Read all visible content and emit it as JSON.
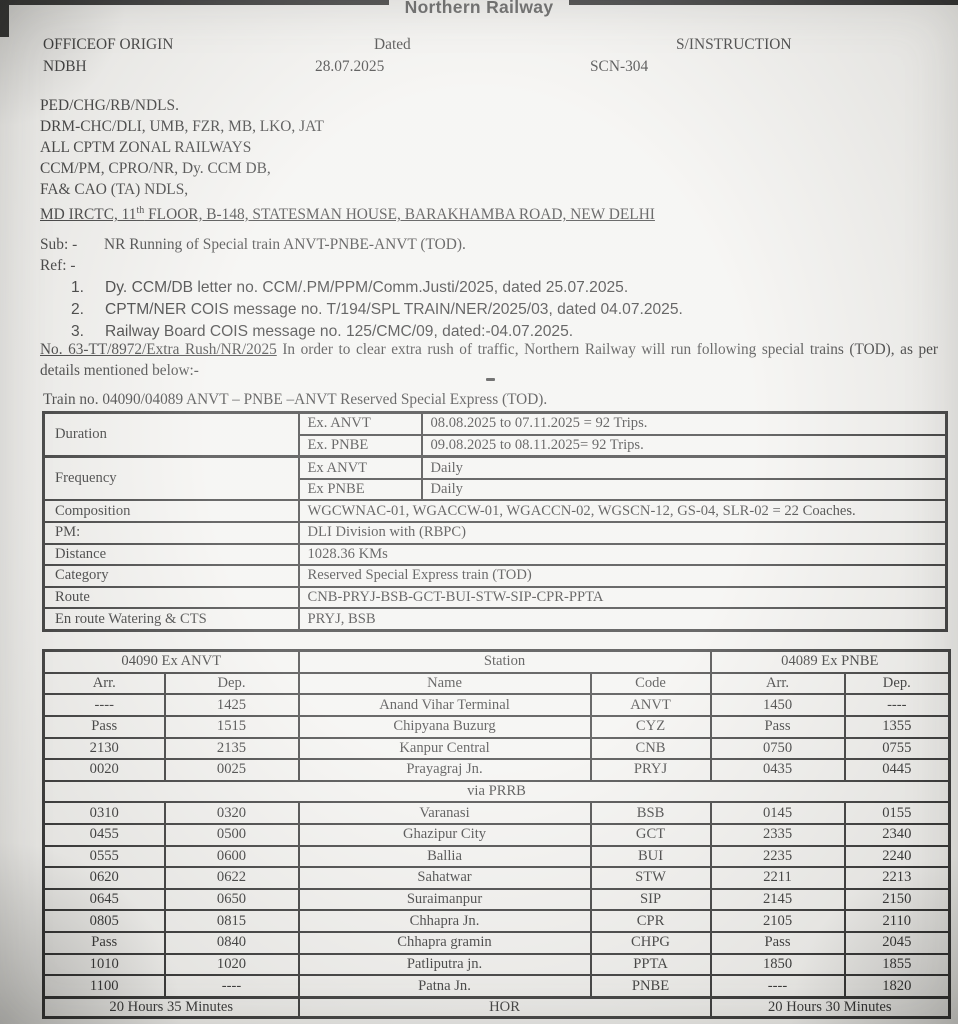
{
  "document": {
    "railway_title": "Northern Railway",
    "header": {
      "office_label": "OFFICEOF ORIGIN",
      "office_value": "NDBH",
      "dated_label": "Dated",
      "dated_value": "28.07.2025",
      "instruction_label": "S/INSTRUCTION",
      "instruction_value": "SCN-304"
    },
    "addressees": [
      "PED/CHG/RB/NDLS.",
      "DRM-CHC/DLI, UMB, FZR, MB, LKO, JAT",
      "ALL CPTM ZONAL RAILWAYS",
      "CCM/PM, CPRO/NR, Dy. CCM DB,",
      "FA& CAO (TA) NDLS,"
    ],
    "md_line": {
      "prefix": "MD IRCTC, 11",
      "superscript": "th",
      "suffix": " FLOOR, B-148, STATESMAN HOUSE, BARAKHAMBA ROAD, NEW DELHI"
    },
    "subject": {
      "label": "Sub: -",
      "text": "NR Running of Special train ANVT-PNBE-ANVT (TOD)."
    },
    "reference_label": "Ref: -",
    "references": [
      {
        "num": "1.",
        "text": "Dy. CCM/DB letter no. CCM/.PM/PPM/Comm.Justi/2025, dated 25.07.2025."
      },
      {
        "num": "2.",
        "text": "CPTM/NER COIS message no. T/194/SPL TRAIN/NER/2025/03, dated 04.07.2025."
      },
      {
        "num": "3.",
        "text": "Railway Board COIS message no. 125/CMC/09, dated:-04.07.2025."
      }
    ],
    "order": {
      "file_no": "No. 63-TT/8972/Extra Rush/NR/2025",
      "text": " In order to clear extra rush of traffic, Northern Railway will run following special trains (TOD), as per details mentioned below:-"
    },
    "train_heading": "Train no. 04090/04089 ANVT – PNBE –ANVT Reserved Special Express (TOD)."
  },
  "info_table": {
    "duration": {
      "label": "Duration",
      "rows": [
        {
          "key": "Ex. ANVT",
          "value": "08.08.2025 to 07.11.2025 = 92 Trips."
        },
        {
          "key": "Ex. PNBE",
          "value": "09.08.2025 to 08.11.2025= 92 Trips."
        }
      ]
    },
    "frequency": {
      "label": "Frequency",
      "rows": [
        {
          "key": "Ex ANVT",
          "value": "Daily"
        },
        {
          "key": "Ex PNBE",
          "value": "Daily"
        }
      ]
    },
    "simple_rows": [
      {
        "label": "Composition",
        "value": "WGCWNAC-01, WGACCW-01, WGACCN-02, WGSCN-12, GS-04, SLR-02 = 22 Coaches."
      },
      {
        "label": "PM:",
        "value": "DLI Division with (RBPC)"
      },
      {
        "label": "Distance",
        "value": "1028.36 KMs"
      },
      {
        "label": "Category",
        "value": "Reserved Special Express train (TOD)"
      },
      {
        "label": "Route",
        "value": "CNB-PRYJ-BSB-GCT-BUI-STW-SIP-CPR-PPTA"
      },
      {
        "label": "En route Watering & CTS",
        "value": "PRYJ, BSB"
      }
    ]
  },
  "timetable": {
    "group_headers": [
      "04090 Ex ANVT",
      "Station",
      "04089 Ex PNBE"
    ],
    "col_headers": [
      "Arr.",
      "Dep.",
      "Name",
      "Code",
      "Arr.",
      "Dep."
    ],
    "rows_top": [
      [
        "----",
        "1425",
        "Anand Vihar Terminal",
        "ANVT",
        "1450",
        "----"
      ],
      [
        "Pass",
        "1515",
        "Chipyana Buzurg",
        "CYZ",
        "Pass",
        "1355"
      ],
      [
        "2130",
        "2135",
        "Kanpur Central",
        "CNB",
        "0750",
        "0755"
      ],
      [
        "0020",
        "0025",
        "Prayagraj Jn.",
        "PRYJ",
        "0435",
        "0445"
      ]
    ],
    "via_label": "via PRRB",
    "rows_bottom": [
      [
        "0310",
        "0320",
        "Varanasi",
        "BSB",
        "0145",
        "0155"
      ],
      [
        "0455",
        "0500",
        "Ghazipur City",
        "GCT",
        "2335",
        "2340"
      ],
      [
        "0555",
        "0600",
        "Ballia",
        "BUI",
        "2235",
        "2240"
      ],
      [
        "0620",
        "0622",
        "Sahatwar",
        "STW",
        "2211",
        "2213"
      ],
      [
        "0645",
        "0650",
        "Suraimanpur",
        "SIP",
        "2145",
        "2150"
      ],
      [
        "0805",
        "0815",
        "Chhapra Jn.",
        "CPR",
        "2105",
        "2110"
      ],
      [
        "Pass",
        "0840",
        "Chhapra gramin",
        "CHPG",
        "Pass",
        "2045"
      ],
      [
        "1010",
        "1020",
        "Patliputra jn.",
        "PPTA",
        "1850",
        "1855"
      ],
      [
        "1100",
        "----",
        "Patna Jn.",
        "PNBE",
        "----",
        "1820"
      ]
    ],
    "footer": [
      "20 Hours 35 Minutes",
      "HOR",
      "20 Hours 30 Minutes"
    ]
  },
  "colors": {
    "ink": "#1d1d1d",
    "paper": "#f2f1ee"
  }
}
